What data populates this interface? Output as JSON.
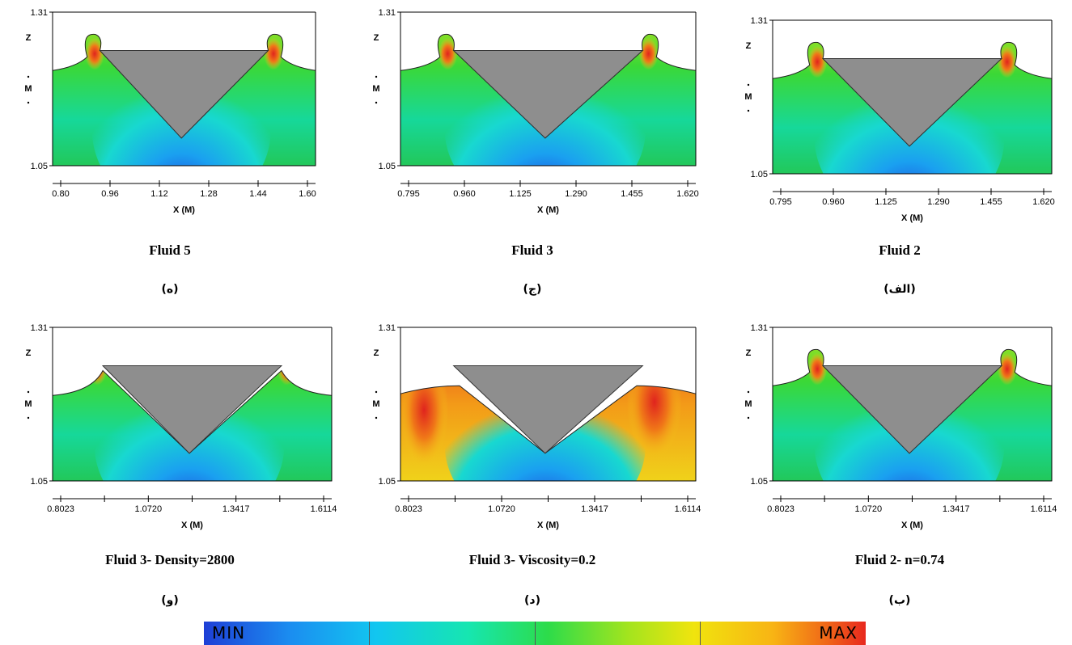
{
  "panels": [
    {
      "id": "fluid5",
      "caption": "Fluid 5",
      "letter": "(ه)",
      "ymin": "1.31",
      "ymax": "1.05",
      "z_label": "Z",
      "m_label": "M",
      "x_ticks": [
        "0.80",
        "0.96",
        "1.12",
        "1.28",
        "1.44",
        "1.60"
      ],
      "x_title": "X (M)",
      "variant": "crest"
    },
    {
      "id": "fluid3",
      "caption": "Fluid 3",
      "letter": "(ج)",
      "ymin": "1.31",
      "ymax": "1.05",
      "z_label": "Z",
      "m_label": "M",
      "x_ticks": [
        "0.795",
        "0.960",
        "1.125",
        "1.290",
        "1.455",
        "1.620"
      ],
      "x_title": "X (M)",
      "variant": "crest"
    },
    {
      "id": "fluid2",
      "caption": "Fluid 2",
      "letter": "(الف)",
      "ymin": "1.31",
      "ymax": "1.05",
      "z_label": "Z",
      "m_label": "M",
      "x_ticks": [
        "0.795",
        "0.960",
        "1.125",
        "1.290",
        "1.455",
        "1.620"
      ],
      "x_title": "X (M)",
      "variant": "crest"
    },
    {
      "id": "fluid3_density",
      "caption": "Fluid 3- Density=2800",
      "letter": "(و)",
      "ymin": "1.31",
      "ymax": "1.05",
      "z_label": "Z",
      "m_label": "M",
      "x_ticks": [
        "0.8023",
        "1.0720",
        "1.3417",
        "1.6114"
      ],
      "x_title": "X (M)",
      "variant": "smooth"
    },
    {
      "id": "fluid3_viscosity",
      "caption": "Fluid 3- Viscosity=0.2",
      "letter": "(د)",
      "ymin": "1.31",
      "ymax": "1.05",
      "z_label": "Z",
      "m_label": "M",
      "x_ticks": [
        "0.8023",
        "1.0720",
        "1.3417",
        "1.6114"
      ],
      "x_title": "X (M)",
      "variant": "hot"
    },
    {
      "id": "fluid2_n",
      "caption": "Fluid 2- n=0.74",
      "letter": "(ب)",
      "ymin": "1.31",
      "ymax": "1.05",
      "z_label": "Z",
      "m_label": "M",
      "x_ticks": [
        "0.8023",
        "1.0720",
        "1.3417",
        "1.6114"
      ],
      "x_title": "X (M)",
      "variant": "crest"
    }
  ],
  "legend": {
    "min_label": "MIN",
    "max_label": "MAX",
    "colors": [
      "#1e3fd6",
      "#12c6f0",
      "#2ddc4a",
      "#f0e40e",
      "#e8281e"
    ]
  }
}
